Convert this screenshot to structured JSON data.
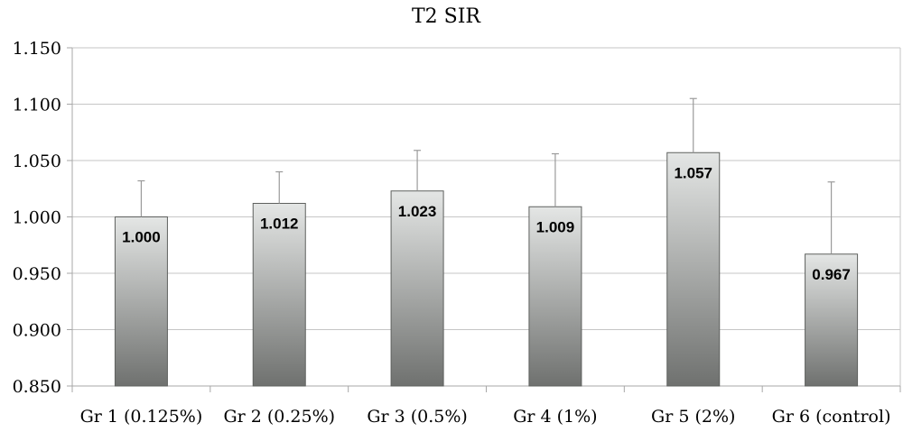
{
  "chart_data": {
    "type": "bar",
    "title": "T2 SIR",
    "xlabel": "",
    "ylabel": "",
    "categories": [
      "Gr 1 (0.125%)",
      "Gr 2 (0.25%)",
      "Gr 3 (0.5%)",
      "Gr 4 (1%)",
      "Gr 5 (2%)",
      "Gr 6 (control)"
    ],
    "values": [
      1.0,
      1.012,
      1.023,
      1.009,
      1.057,
      0.967
    ],
    "data_labels": [
      "1.000",
      "1.012",
      "1.023",
      "1.009",
      "1.057",
      "0.967"
    ],
    "error_upper": [
      1.032,
      1.04,
      1.059,
      1.056,
      1.105,
      1.031
    ],
    "ylim": [
      0.85,
      1.15
    ],
    "yticks": [
      0.85,
      0.9,
      0.95,
      1.0,
      1.05,
      1.1,
      1.15
    ],
    "ytick_labels": [
      "0.850",
      "0.900",
      "0.950",
      "1.000",
      "1.050",
      "1.100",
      "1.150"
    ],
    "grid": true,
    "legend": "none",
    "colors": {
      "bar_light": "#e4e6e5",
      "bar_dark": "#6f716f",
      "grid": "#c6c6c6",
      "axis": "#a7a7a7",
      "errorbar": "#9a9a9a"
    }
  }
}
